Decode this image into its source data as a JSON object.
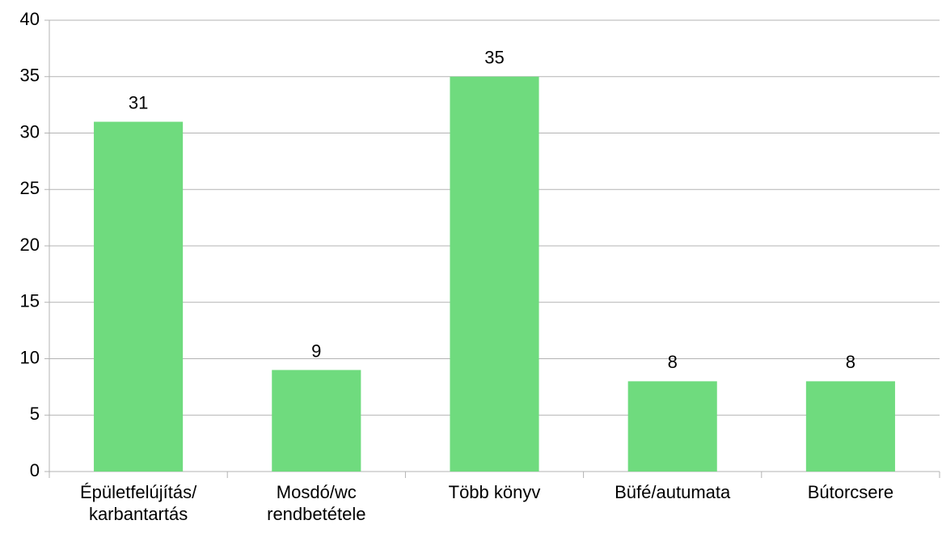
{
  "chart_data": {
    "type": "bar",
    "categories": [
      "Épületfelújítás/\nkarbantartás",
      "Mosdó/wc\nrendbetétele",
      "Több könyv",
      "Büfé/autumata",
      "Bútorcsere"
    ],
    "values": [
      31,
      9,
      35,
      8,
      8
    ],
    "color": "#6fdb7e",
    "ylim": [
      0,
      40
    ],
    "yticks": [
      0,
      5,
      10,
      15,
      20,
      25,
      30,
      35,
      40
    ],
    "grid": true
  }
}
